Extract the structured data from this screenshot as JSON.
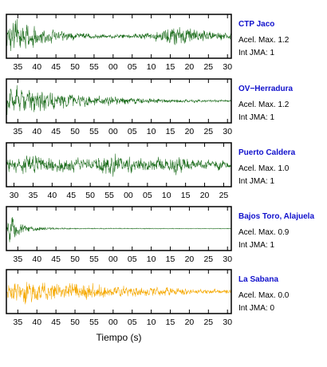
{
  "chart_data": {
    "type": "line",
    "xlabel": "Tiempo (s)",
    "label_color": "#1010cc",
    "panels": [
      {
        "station": "CTP Jaco",
        "accel_label": "Acel. Max. 1.2",
        "int_label": "Int JMA: 1",
        "color": "#1a6b1a",
        "x_ticks": [
          "35",
          "40",
          "45",
          "50",
          "55",
          "00",
          "05",
          "10",
          "15",
          "20",
          "25",
          "30"
        ],
        "x_tick_start_sec": 35,
        "x_range_sec": [
          32,
          91
        ],
        "envelope": [
          [
            32,
            0.9
          ],
          [
            34,
            1.0
          ],
          [
            36,
            0.8
          ],
          [
            40,
            0.5
          ],
          [
            45,
            0.3
          ],
          [
            50,
            0.2
          ],
          [
            55,
            0.15
          ],
          [
            60,
            0.12
          ],
          [
            65,
            0.15
          ],
          [
            70,
            0.2
          ],
          [
            72,
            0.35
          ],
          [
            74,
            0.5
          ],
          [
            76,
            0.6
          ],
          [
            78,
            0.5
          ],
          [
            80,
            0.6
          ],
          [
            82,
            0.35
          ],
          [
            86,
            0.25
          ],
          [
            91,
            0.25
          ]
        ]
      },
      {
        "station": "OV−Herradura",
        "accel_label": "Acel. Max. 1.2",
        "int_label": "Int JMA: 1",
        "color": "#1a6b1a",
        "x_ticks": [
          "35",
          "40",
          "45",
          "50",
          "55",
          "00",
          "05",
          "10",
          "15",
          "20",
          "25",
          "30"
        ],
        "x_tick_start_sec": 35,
        "x_range_sec": [
          32,
          91
        ],
        "envelope": [
          [
            32,
            0.85
          ],
          [
            35,
            0.8
          ],
          [
            38,
            0.7
          ],
          [
            42,
            0.6
          ],
          [
            46,
            0.45
          ],
          [
            50,
            0.35
          ],
          [
            55,
            0.3
          ],
          [
            60,
            0.25
          ],
          [
            65,
            0.2
          ],
          [
            70,
            0.15
          ],
          [
            75,
            0.12
          ],
          [
            80,
            0.1
          ],
          [
            85,
            0.08
          ],
          [
            91,
            0.06
          ]
        ]
      },
      {
        "station": "Puerto Caldera",
        "accel_label": "Acel. Max. 1.0",
        "int_label": "Int JMA: 1",
        "color": "#1a6b1a",
        "x_ticks": [
          "30",
          "35",
          "40",
          "45",
          "50",
          "55",
          "00",
          "05",
          "10",
          "15",
          "20",
          "25"
        ],
        "x_tick_start_sec": 30,
        "x_range_sec": [
          28,
          87
        ],
        "envelope": [
          [
            28,
            0.35
          ],
          [
            30,
            0.45
          ],
          [
            33,
            0.55
          ],
          [
            36,
            0.45
          ],
          [
            40,
            0.4
          ],
          [
            45,
            0.4
          ],
          [
            50,
            0.35
          ],
          [
            54,
            0.5
          ],
          [
            56,
            0.8
          ],
          [
            58,
            0.5
          ],
          [
            62,
            0.4
          ],
          [
            66,
            0.35
          ],
          [
            70,
            0.45
          ],
          [
            72,
            0.6
          ],
          [
            74,
            0.45
          ],
          [
            78,
            0.35
          ],
          [
            82,
            0.3
          ],
          [
            87,
            0.3
          ]
        ]
      },
      {
        "station": "Bajos Toro, Alajuela",
        "accel_label": "Acel. Max. 0.9",
        "int_label": "Int JMA: 1",
        "color": "#1a6b1a",
        "x_ticks": [
          "35",
          "40",
          "45",
          "50",
          "55",
          "00",
          "05",
          "10",
          "15",
          "20",
          "25",
          "30"
        ],
        "x_tick_start_sec": 35,
        "x_range_sec": [
          32,
          91
        ],
        "envelope": [
          [
            32,
            0.9
          ],
          [
            33,
            0.7
          ],
          [
            35,
            0.4
          ],
          [
            38,
            0.2
          ],
          [
            42,
            0.1
          ],
          [
            46,
            0.05
          ],
          [
            50,
            0.03
          ],
          [
            91,
            0.02
          ]
        ]
      },
      {
        "station": "La Sabana",
        "accel_label": "Acel. Max. 0.0",
        "int_label": "Int JMA: 0",
        "color": "#f5a800",
        "x_ticks": [
          "35",
          "40",
          "45",
          "50",
          "55",
          "00",
          "05",
          "10",
          "15",
          "20",
          "25",
          "30"
        ],
        "x_tick_start_sec": 35,
        "x_range_sec": [
          32,
          91
        ],
        "envelope": [
          [
            32,
            0.7
          ],
          [
            35,
            0.75
          ],
          [
            38,
            0.7
          ],
          [
            42,
            0.6
          ],
          [
            46,
            0.5
          ],
          [
            50,
            0.6
          ],
          [
            52,
            0.45
          ],
          [
            56,
            0.4
          ],
          [
            60,
            0.35
          ],
          [
            64,
            0.3
          ],
          [
            68,
            0.28
          ],
          [
            72,
            0.25
          ],
          [
            78,
            0.2
          ],
          [
            84,
            0.15
          ],
          [
            91,
            0.13
          ]
        ]
      }
    ]
  }
}
